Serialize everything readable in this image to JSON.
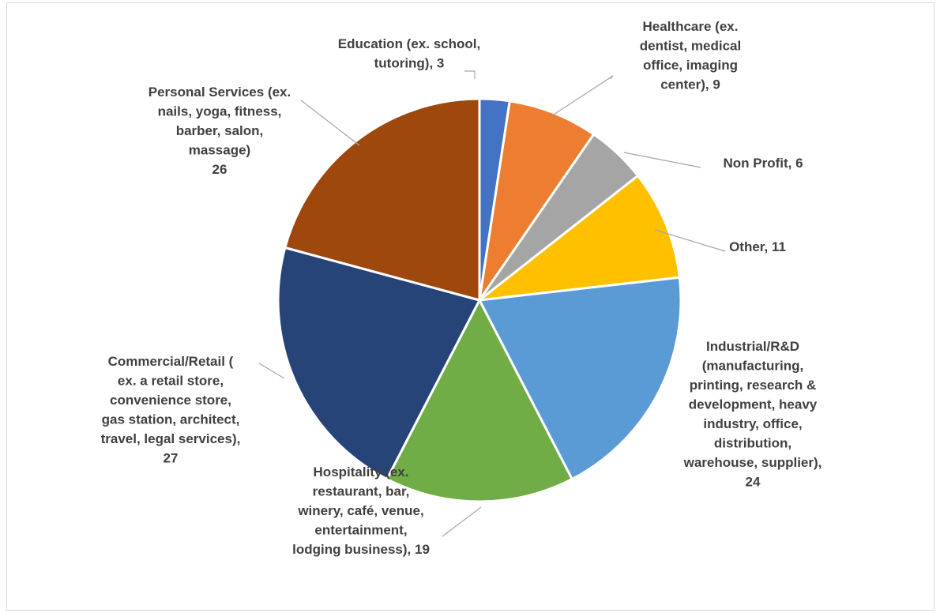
{
  "chart_data": {
    "type": "pie",
    "title": "",
    "start_angle_deg": 0,
    "direction": "clockwise",
    "legend": "none",
    "slices": [
      {
        "label_lines": [
          "Education (ex. school,",
          "tutoring), 3"
        ],
        "category": "Education (ex. school, tutoring)",
        "value": 3,
        "color": "#4472C4"
      },
      {
        "label_lines": [
          "Healthcare (ex.",
          "dentist, medical",
          "office, imaging",
          "center), 9"
        ],
        "category": "Healthcare (ex. dentist, medical office, imaging center)",
        "value": 9,
        "color": "#ED7D31"
      },
      {
        "label_lines": [
          "Non Profit, 6"
        ],
        "category": "Non Profit",
        "value": 6,
        "color": "#A5A5A5"
      },
      {
        "label_lines": [
          "Other, 11"
        ],
        "category": "Other",
        "value": 11,
        "color": "#FFC000"
      },
      {
        "label_lines": [
          "Industrial/R&D",
          "(manufacturing,",
          "printing, research &",
          "development, heavy",
          "industry, office,",
          "distribution,",
          "warehouse, supplier),",
          "24"
        ],
        "category": "Industrial/R&D (manufacturing, printing, research & development, heavy industry, office, distribution, warehouse, supplier)",
        "value": 24,
        "color": "#5B9BD5"
      },
      {
        "label_lines": [
          "Hospitality (ex.",
          "restaurant, bar,",
          "winery, café, venue,",
          "entertainment,",
          "lodging business), 19"
        ],
        "category": "Hospitality (ex. restaurant, bar, winery, café, venue, entertainment, lodging business)",
        "value": 19,
        "color": "#70AD47"
      },
      {
        "label_lines": [
          "Commercial/Retail (",
          "ex. a retail store,",
          "convenience store,",
          "gas station, architect,",
          "travel, legal services),",
          "27"
        ],
        "category": "Commercial/Retail ( ex. a retail store, convenience store, gas station, architect, travel, legal services)",
        "value": 27,
        "color": "#264478"
      },
      {
        "label_lines": [
          "Personal Services (ex.",
          "nails, yoga, fitness,",
          "barber, salon,",
          "massage)",
          "26"
        ],
        "category": "Personal Services (ex. nails, yoga, fitness, barber, salon, massage)",
        "value": 26,
        "color": "#9E480E"
      }
    ]
  }
}
